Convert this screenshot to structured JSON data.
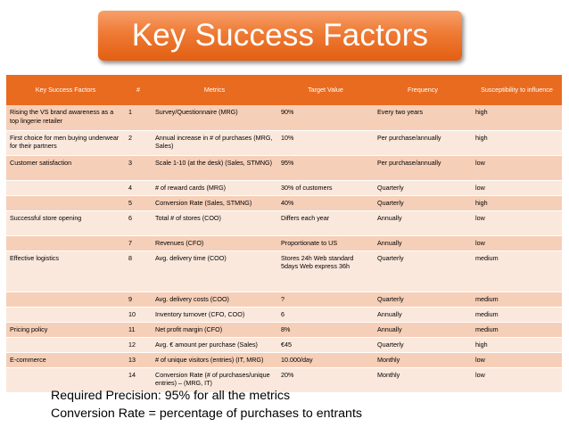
{
  "title": "Key Success Factors",
  "table": {
    "headers": [
      "Key Success Factors",
      "#",
      "Metrics",
      "Target Value",
      "Frequency",
      "Susceptibility to influence"
    ],
    "rows": [
      {
        "factor": "Rising the VS brand awareness as a top lingerie retailer",
        "num": "1",
        "metric": "Survey/Questionnaire (MRG)",
        "target": "90%",
        "frequency": "Every two years",
        "susceptibility": "high"
      },
      {
        "factor": "First choice for men buying underwear for their partners",
        "num": "2",
        "metric": "Annual increase in # of purchases (MRG, Sales)",
        "target": "10%",
        "frequency": "Per purchase/annually",
        "susceptibility": "high"
      },
      {
        "factor": "Customer satisfaction",
        "num": "3",
        "metric": "Scale 1-10 (at the desk) (Sales, STMNG)",
        "target": "95%",
        "frequency": "Per purchase/annually",
        "susceptibility": "low"
      },
      {
        "factor": "",
        "num": "4",
        "metric": "# of reward cards (MRG)",
        "target": "30% of customers",
        "frequency": "Quarterly",
        "susceptibility": "low"
      },
      {
        "factor": "",
        "num": "5",
        "metric": "Conversion Rate (Sales, STMNG)",
        "target": "40%",
        "frequency": "Quarterly",
        "susceptibility": "high"
      },
      {
        "factor": "Successful store opening",
        "num": "6",
        "metric": "Total # of stores (COO)",
        "target": "Differs each year",
        "frequency": "Annually",
        "susceptibility": "low"
      },
      {
        "factor": "",
        "num": "7",
        "metric": "Revenues (CFO)",
        "target": "Proportionate to US",
        "frequency": "Annually",
        "susceptibility": "low"
      },
      {
        "factor": "Effective logistics",
        "num": "8",
        "metric": "Avg. delivery time (COO)",
        "target": "Stores 24h Web standard 5days Web express 36h",
        "frequency": "Quarterly",
        "susceptibility": "medium"
      },
      {
        "factor": "",
        "num": "9",
        "metric": "Avg. delivery costs (COO)",
        "target": "?",
        "frequency": "Quarterly",
        "susceptibility": "medium"
      },
      {
        "factor": "",
        "num": "10",
        "metric": "Inventory turnover (CFO, COO)",
        "target": "6",
        "frequency": "Annually",
        "susceptibility": "medium"
      },
      {
        "factor": "Pricing policy",
        "num": "11",
        "metric": "Net profit margin (CFO)",
        "target": "8%",
        "frequency": "Annually",
        "susceptibility": "medium"
      },
      {
        "factor": "",
        "num": "12",
        "metric": "Avg. € amount per purchase (Sales)",
        "target": "€45",
        "frequency": "Quarterly",
        "susceptibility": "high"
      },
      {
        "factor": "E-commerce",
        "num": "13",
        "metric": "# of unique visitors (entries) (IT, MRG)",
        "target": "10.000/day",
        "frequency": "Monthly",
        "susceptibility": "low"
      },
      {
        "factor": "",
        "num": "14",
        "metric": "Conversion Rate (# of purchases/unique entries) – (MRG, IT)",
        "target": "20%",
        "frequency": "Monthly",
        "susceptibility": "low"
      }
    ]
  },
  "notes": [
    "Required Precision: 95% for all the metrics",
    "Conversion  Rate = percentage of purchases  to  entrants"
  ],
  "colors": {
    "title_orange": "#ee7a34",
    "header_orange": "#e96b1f",
    "row_dark": "#f6cfb8",
    "row_light": "#fbe8dc"
  }
}
